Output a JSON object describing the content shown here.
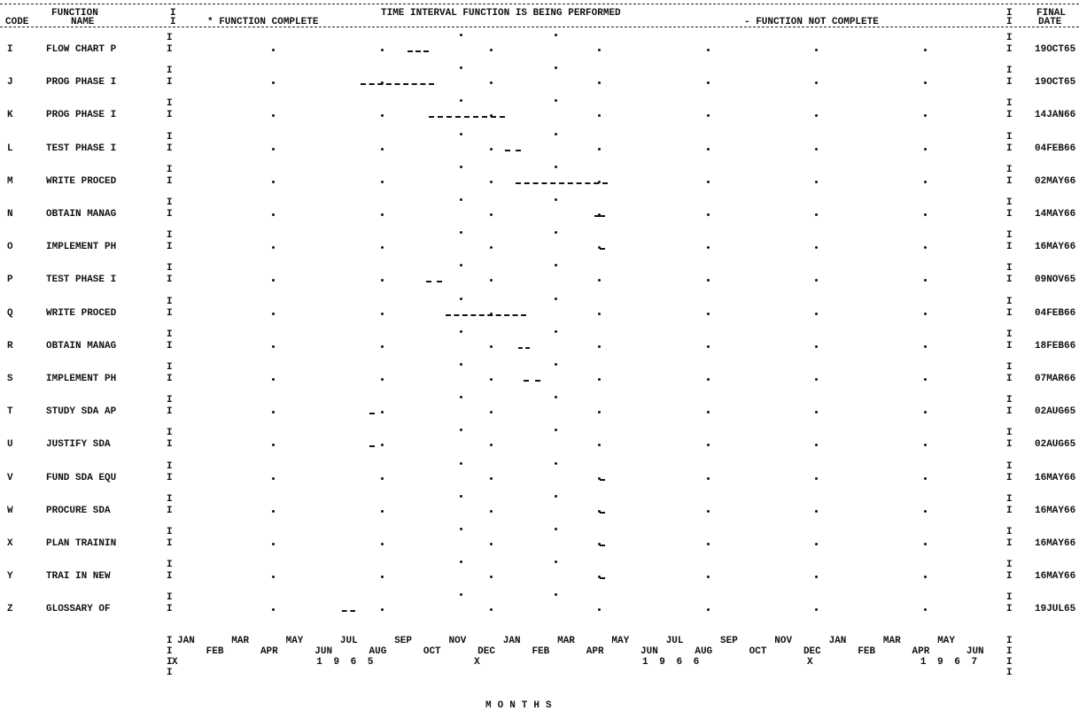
{
  "header": {
    "function_label": "FUNCTION",
    "code_label": "CODE",
    "name_label": "NAME",
    "title": "TIME INTERVAL FUNCTION IS BEING PERFORMED",
    "legend_complete": "* FUNCTION COMPLETE",
    "legend_not_complete": "- FUNCTION NOT COMPLETE",
    "final_label": "FINAL",
    "date_label": "DATE"
  },
  "chart_data": {
    "type": "gantt",
    "title": "TIME INTERVAL FUNCTION IS BEING PERFORMED",
    "xlabel": "MONTHS",
    "x_range": [
      "1965-01",
      "1967-06"
    ],
    "month_ticks_top": [
      "JAN",
      "MAR",
      "MAY",
      "JUL",
      "SEP",
      "NOV",
      "JAN",
      "MAR",
      "MAY",
      "JUL",
      "SEP",
      "NOV",
      "JAN",
      "MAR",
      "MAY"
    ],
    "month_ticks_bottom": [
      "FEB",
      "APR",
      "JUN",
      "AUG",
      "OCT",
      "DEC",
      "FEB",
      "APR",
      "JUN",
      "AUG",
      "OCT",
      "DEC",
      "FEB",
      "APR",
      "JUN"
    ],
    "years": [
      "1 9 6 5",
      "1 9 6 6",
      "1 9 6 7"
    ],
    "year_markers": [
      "X",
      "X",
      "X"
    ],
    "legend": [
      "* FUNCTION COMPLETE",
      "- FUNCTION NOT COMPLETE"
    ],
    "rows": [
      {
        "code": "I",
        "name": "FLOW CHART P",
        "start": 8.6,
        "end": 9.4,
        "final": "19OCT65"
      },
      {
        "code": "J",
        "name": "PROG PHASE I",
        "start": 6.9,
        "end": 9.6,
        "final": "19OCT65"
      },
      {
        "code": "K",
        "name": "PROG PHASE I",
        "start": 9.4,
        "end": 12.2,
        "final": "14JAN66"
      },
      {
        "code": "L",
        "name": "TEST PHASE I",
        "start": 12.2,
        "end": 12.8,
        "final": "04FEB66"
      },
      {
        "code": "M",
        "name": "WRITE PROCED",
        "start": 12.6,
        "end": 16.0,
        "final": "02MAY66"
      },
      {
        "code": "N",
        "name": "OBTAIN MANAG",
        "start": 15.5,
        "end": 15.9,
        "final": "14MAY66"
      },
      {
        "code": "O",
        "name": "IMPLEMENT PH",
        "start": 15.7,
        "end": 15.9,
        "final": "16MAY66"
      },
      {
        "code": "P",
        "name": "TEST PHASE I",
        "start": 9.3,
        "end": 9.9,
        "final": "09NOV65"
      },
      {
        "code": "Q",
        "name": "WRITE PROCED",
        "start": 10.0,
        "end": 13.0,
        "final": "04FEB66"
      },
      {
        "code": "R",
        "name": "OBTAIN MANAG",
        "start": 12.7,
        "end": 13.1,
        "final": "18FEB66"
      },
      {
        "code": "S",
        "name": "IMPLEMENT PH",
        "start": 12.9,
        "end": 13.5,
        "final": "07MAR66"
      },
      {
        "code": "T",
        "name": "STUDY SDA AP",
        "start": 7.2,
        "end": 7.4,
        "final": "02AUG65"
      },
      {
        "code": "U",
        "name": "JUSTIFY SDA",
        "start": 7.2,
        "end": 7.4,
        "final": "02AUG65"
      },
      {
        "code": "V",
        "name": "FUND SDA EQU",
        "start": 15.7,
        "end": 15.9,
        "final": "16MAY66"
      },
      {
        "code": "W",
        "name": "PROCURE SDA",
        "start": 15.7,
        "end": 15.9,
        "final": "16MAY66"
      },
      {
        "code": "X",
        "name": "PLAN TRAININ",
        "start": 15.7,
        "end": 15.9,
        "final": "16MAY66"
      },
      {
        "code": "Y",
        "name": "TRAI IN NEW",
        "start": 15.7,
        "end": 15.9,
        "final": "16MAY66"
      },
      {
        "code": "Z",
        "name": "GLOSSARY OF",
        "start": 6.2,
        "end": 6.7,
        "final": "19JUL65"
      }
    ]
  }
}
